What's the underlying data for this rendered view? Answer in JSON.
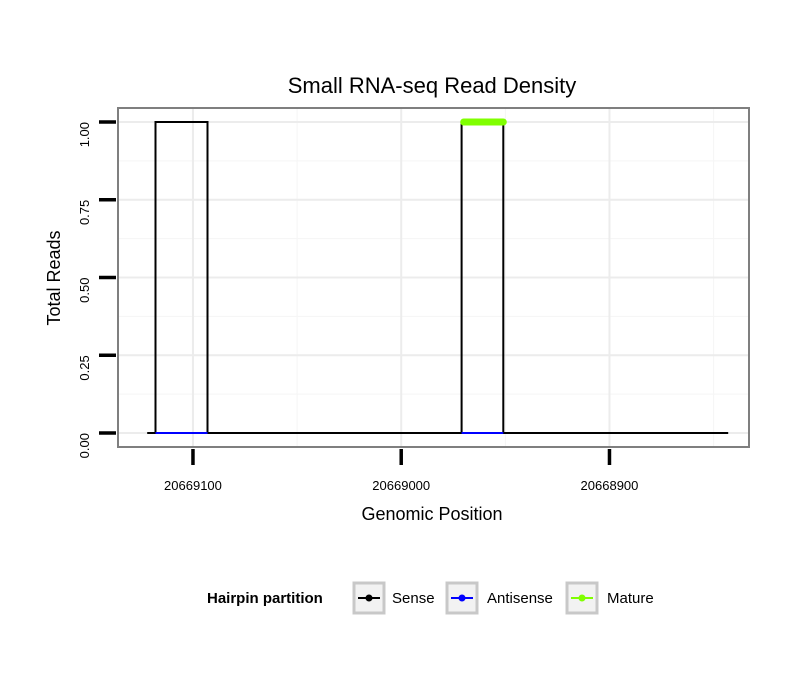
{
  "chart_data": {
    "type": "line",
    "title": "Small RNA-seq Read Density",
    "xlabel": "Genomic Position",
    "ylabel": "Total Reads",
    "xlim": [
      20669136,
      20668833
    ],
    "x_reversed": true,
    "ylim": [
      -0.045,
      1.045
    ],
    "x_ticks": [
      {
        "value": 20669100,
        "label": "20669100"
      },
      {
        "value": 20669000,
        "label": "20669000"
      },
      {
        "value": 20668900,
        "label": "20668900"
      }
    ],
    "y_ticks": [
      {
        "value": 0,
        "label": "0.00"
      },
      {
        "value": 0.25,
        "label": "0.25"
      },
      {
        "value": 0.5,
        "label": "0.50"
      },
      {
        "value": 0.75,
        "label": "0.75"
      },
      {
        "value": 1,
        "label": "1.00"
      }
    ],
    "grid": true,
    "legend_position": "bottom",
    "legend_title": "Hairpin partition",
    "series": [
      {
        "name": "Sense",
        "color": "#000000",
        "x": [
          20669122,
          20669118,
          20669118,
          20669093,
          20669093,
          20668971,
          20668971,
          20668951,
          20668951,
          20668843
        ],
        "y": [
          0,
          0,
          1,
          1,
          0,
          0,
          1,
          1,
          0,
          0
        ]
      },
      {
        "name": "Antisense",
        "color": "#0000ff",
        "x": [
          20669118,
          20669093
        ],
        "y": [
          0,
          0
        ]
      },
      {
        "name": "Antisense",
        "color": "#0000ff",
        "x": [
          20668971,
          20668951
        ],
        "y": [
          0,
          0
        ]
      },
      {
        "name": "Mature",
        "color": "#80ff00",
        "x": [
          20668970,
          20668951
        ],
        "y": [
          1,
          1
        ],
        "thick": true
      }
    ]
  },
  "legend": {
    "items": [
      {
        "name": "Sense",
        "color": "#000000"
      },
      {
        "name": "Antisense",
        "color": "#0000ff"
      },
      {
        "name": "Mature",
        "color": "#80ff00"
      }
    ]
  }
}
